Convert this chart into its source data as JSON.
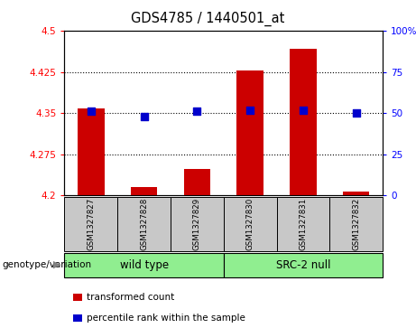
{
  "title": "GDS4785 / 1440501_at",
  "samples": [
    "GSM1327827",
    "GSM1327828",
    "GSM1327829",
    "GSM1327830",
    "GSM1327831",
    "GSM1327832"
  ],
  "red_values": [
    4.358,
    4.215,
    4.248,
    4.428,
    4.468,
    4.207
  ],
  "blue_values": [
    51,
    48,
    51,
    52,
    52,
    50
  ],
  "ylim_left": [
    4.2,
    4.5
  ],
  "ylim_right": [
    0,
    100
  ],
  "yticks_left": [
    4.2,
    4.275,
    4.35,
    4.425,
    4.5
  ],
  "ytick_labels_left": [
    "4.2",
    "4.275",
    "4.35",
    "4.425",
    "4.5"
  ],
  "yticks_right": [
    0,
    25,
    50,
    75,
    100
  ],
  "ytick_labels_right": [
    "0",
    "25",
    "50",
    "75",
    "100%"
  ],
  "hlines": [
    4.275,
    4.35,
    4.425
  ],
  "group1_label": "wild type",
  "group2_label": "SRC-2 null",
  "group1_indices": [
    0,
    1,
    2
  ],
  "group2_indices": [
    3,
    4,
    5
  ],
  "group1_color": "#90EE90",
  "group2_color": "#90EE90",
  "bar_color": "#CC0000",
  "dot_color": "#0000CC",
  "bar_width": 0.5,
  "dot_size": 28,
  "legend_red_label": "transformed count",
  "legend_blue_label": "percentile rank within the sample",
  "genotype_label": "genotype/variation",
  "bar_base": 4.2,
  "sample_box_color": "#C8C8C8",
  "bg_color": "#FFFFFF"
}
